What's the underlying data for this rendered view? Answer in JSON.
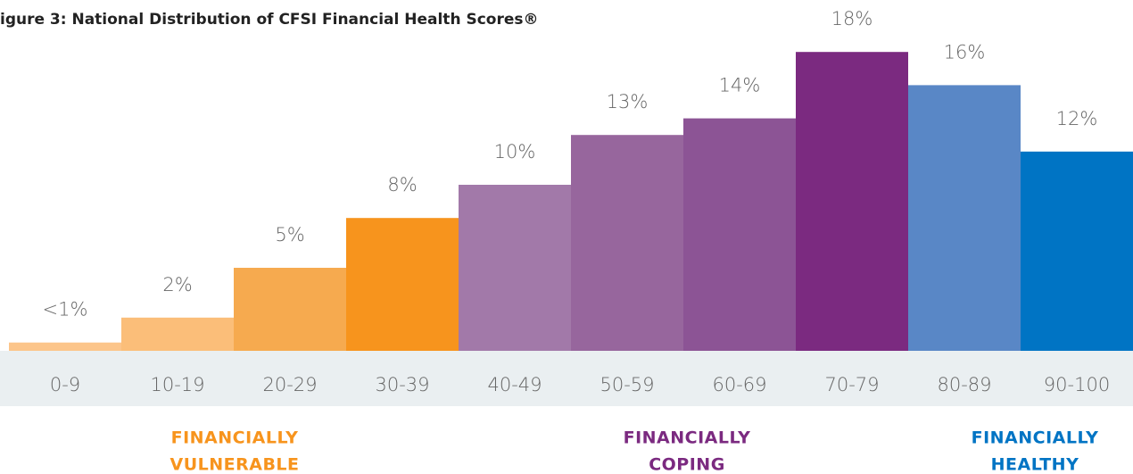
{
  "chart_data": {
    "type": "bar",
    "title": "igure 3: National Distribution of CFSI Financial Health Scores®",
    "categories": [
      "0-9",
      "10-19",
      "20-29",
      "30-39",
      "40-49",
      "50-59",
      "60-69",
      "70-79",
      "80-89",
      "90-100"
    ],
    "values": [
      0.5,
      2,
      5,
      8,
      10,
      13,
      14,
      18,
      16,
      12
    ],
    "value_labels": [
      "<1%",
      "2%",
      "5%",
      "8%",
      "10%",
      "13%",
      "14%",
      "18%",
      "16%",
      "12%"
    ],
    "colors": [
      "#fcc58a",
      "#fbbe79",
      "#f6aa4f",
      "#f7941d",
      "#a279a9",
      "#97669d",
      "#8c5495",
      "#7b2a80",
      "#5987c6",
      "#0074c4"
    ],
    "ylim": [
      0,
      20
    ],
    "groups": [
      {
        "lines": [
          "FINANCIALLY",
          "VULNERABLE"
        ],
        "color": "#f7941d"
      },
      {
        "lines": [
          "FINANCIALLY",
          "COPING"
        ],
        "color": "#7b2a80"
      },
      {
        "lines": [
          "FINANCIALLY",
          "HEALTHY"
        ],
        "color": "#0074c4"
      }
    ]
  }
}
